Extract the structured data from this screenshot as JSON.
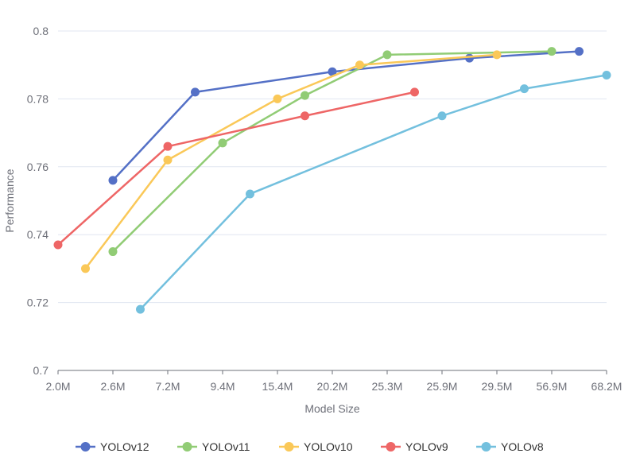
{
  "chart_data": {
    "type": "line",
    "title": "",
    "xlabel": "Model Size",
    "ylabel": "Performance",
    "categories": [
      "2.0M",
      "2.6M",
      "7.2M",
      "9.4M",
      "15.4M",
      "20.2M",
      "25.3M",
      "25.9M",
      "29.5M",
      "56.9M",
      "68.2M"
    ],
    "ylim": [
      0.7,
      0.8
    ],
    "yticks": [
      0.7,
      0.72,
      0.74,
      0.76,
      0.78,
      0.8
    ],
    "ytick_labels": [
      "0.7",
      "0.72",
      "0.74",
      "0.76",
      "0.78",
      "0.8"
    ],
    "grid": true,
    "legend_position": "bottom",
    "series": [
      {
        "name": "YOLOv12",
        "color": "#5470c6",
        "points": [
          [
            1.0,
            0.756
          ],
          [
            2.5,
            0.782
          ],
          [
            5.0,
            0.788
          ],
          [
            7.5,
            0.792
          ],
          [
            9.5,
            0.794
          ]
        ]
      },
      {
        "name": "YOLOv11",
        "color": "#91cc75",
        "points": [
          [
            1.0,
            0.735
          ],
          [
            3.0,
            0.767
          ],
          [
            4.5,
            0.781
          ],
          [
            6.0,
            0.793
          ],
          [
            9.0,
            0.794
          ]
        ]
      },
      {
        "name": "YOLOv10",
        "color": "#fac858",
        "points": [
          [
            0.5,
            0.73
          ],
          [
            2.0,
            0.762
          ],
          [
            4.0,
            0.78
          ],
          [
            5.5,
            0.79
          ],
          [
            8.0,
            0.793
          ]
        ]
      },
      {
        "name": "YOLOv9",
        "color": "#ee6666",
        "points": [
          [
            0.0,
            0.737
          ],
          [
            2.0,
            0.766
          ],
          [
            4.5,
            0.775
          ],
          [
            6.5,
            0.782
          ]
        ]
      },
      {
        "name": "YOLOv8",
        "color": "#73c0de",
        "points": [
          [
            1.5,
            0.718
          ],
          [
            3.5,
            0.752
          ],
          [
            7.0,
            0.775
          ],
          [
            8.5,
            0.783
          ],
          [
            10.0,
            0.787
          ]
        ]
      }
    ]
  }
}
